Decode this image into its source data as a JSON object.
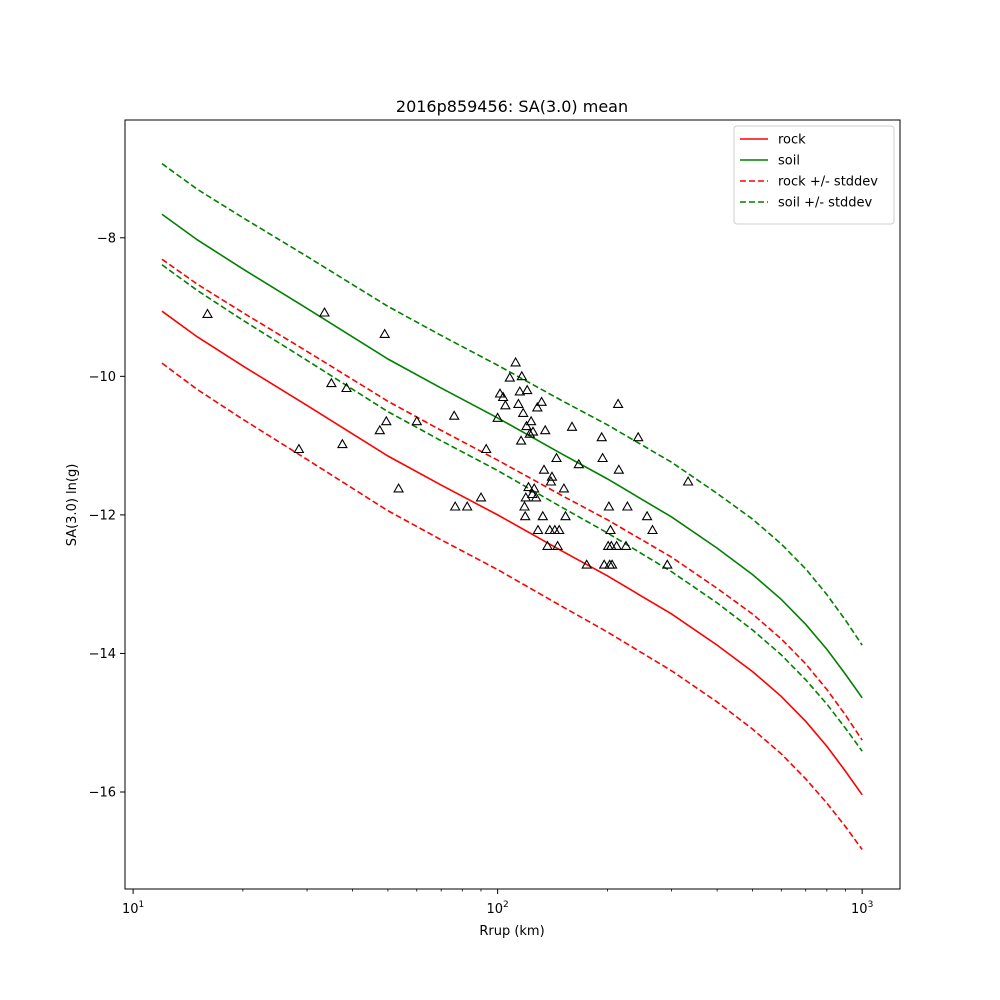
{
  "chart_data": {
    "type": "line",
    "title": "2016p859456: SA(3.0) mean",
    "xlabel": "Rrup (km)",
    "ylabel": "SA(3.0) ln(g)",
    "xscale": "log",
    "xlim": [
      9.5,
      1270
    ],
    "ylim": [
      -17.4,
      -6.3
    ],
    "x_ticks": [
      {
        "value": 10,
        "base": "10",
        "exp": "1"
      },
      {
        "value": 100,
        "base": "10",
        "exp": "2"
      },
      {
        "value": 1000,
        "base": "10",
        "exp": "3"
      }
    ],
    "y_ticks": [
      {
        "value": -8,
        "label": "−8"
      },
      {
        "value": -10,
        "label": "−10"
      },
      {
        "value": -12,
        "label": "−12"
      },
      {
        "value": -14,
        "label": "−14"
      },
      {
        "value": -16,
        "label": "−16"
      }
    ],
    "grid": false,
    "legend_position": "top-right",
    "series": [
      {
        "name": "rock",
        "color": "#ff0000",
        "style": "solid",
        "x": [
          12,
          15,
          20,
          30,
          50,
          70,
          100,
          150,
          200,
          300,
          400,
          500,
          600,
          700,
          800,
          900,
          1000
        ],
        "y": [
          -9.06,
          -9.43,
          -9.85,
          -10.42,
          -11.15,
          -11.57,
          -12.0,
          -12.52,
          -12.88,
          -13.43,
          -13.88,
          -14.26,
          -14.62,
          -14.98,
          -15.34,
          -15.7,
          -16.04
        ]
      },
      {
        "name": "soil",
        "color": "#008000",
        "style": "solid",
        "x": [
          12,
          15,
          20,
          30,
          50,
          70,
          100,
          150,
          200,
          300,
          400,
          500,
          600,
          700,
          800,
          900,
          1000
        ],
        "y": [
          -7.66,
          -8.03,
          -8.45,
          -9.02,
          -9.75,
          -10.17,
          -10.6,
          -11.12,
          -11.48,
          -12.03,
          -12.48,
          -12.86,
          -13.22,
          -13.58,
          -13.94,
          -14.3,
          -14.64
        ]
      },
      {
        "name": "rock +/- stddev",
        "color": "#ff0000",
        "style": "dashed",
        "x": [
          12,
          15,
          20,
          30,
          50,
          70,
          100,
          150,
          200,
          300,
          400,
          500,
          600,
          700,
          800,
          900,
          1000
        ],
        "y": [
          -8.31,
          -8.67,
          -9.08,
          -9.64,
          -10.36,
          -10.78,
          -11.21,
          -11.72,
          -12.07,
          -12.61,
          -13.06,
          -13.43,
          -13.79,
          -14.15,
          -14.52,
          -14.89,
          -15.25
        ]
      },
      {
        "name": "rock +/- stddev",
        "color": "#ff0000",
        "style": "dashed",
        "legend": false,
        "x": [
          12,
          15,
          20,
          30,
          50,
          70,
          100,
          150,
          200,
          300,
          400,
          500,
          600,
          700,
          800,
          900,
          1000
        ],
        "y": [
          -9.81,
          -10.19,
          -10.62,
          -11.2,
          -11.94,
          -12.36,
          -12.79,
          -13.32,
          -13.69,
          -14.25,
          -14.7,
          -15.09,
          -15.45,
          -15.81,
          -16.16,
          -16.5,
          -16.83
        ]
      },
      {
        "name": "soil +/- stddev",
        "color": "#008000",
        "style": "dashed",
        "x": [
          12,
          15,
          20,
          30,
          50,
          70,
          100,
          150,
          200,
          300,
          400,
          500,
          600,
          700,
          800,
          900,
          1000
        ],
        "y": [
          -6.93,
          -7.3,
          -7.71,
          -8.27,
          -8.99,
          -9.41,
          -9.84,
          -10.35,
          -10.7,
          -11.24,
          -11.69,
          -12.06,
          -12.42,
          -12.78,
          -13.15,
          -13.52,
          -13.88
        ]
      },
      {
        "name": "soil +/- stddev",
        "color": "#008000",
        "style": "dashed",
        "legend": false,
        "x": [
          12,
          15,
          20,
          30,
          50,
          70,
          100,
          150,
          200,
          300,
          400,
          500,
          600,
          700,
          800,
          900,
          1000
        ],
        "y": [
          -8.39,
          -8.76,
          -9.19,
          -9.77,
          -10.51,
          -10.93,
          -11.36,
          -11.89,
          -12.26,
          -12.82,
          -13.27,
          -13.66,
          -14.02,
          -14.38,
          -14.73,
          -15.08,
          -15.41
        ]
      }
    ],
    "observations": {
      "marker": "triangle-open",
      "color": "#000000",
      "points": [
        [
          16,
          -9.1
        ],
        [
          28.5,
          -11.05
        ],
        [
          33.5,
          -9.08
        ],
        [
          35,
          -10.1
        ],
        [
          37.5,
          -10.98
        ],
        [
          38.5,
          -10.17
        ],
        [
          47.5,
          -10.78
        ],
        [
          49,
          -9.39
        ],
        [
          49.5,
          -10.65
        ],
        [
          53.5,
          -11.62
        ],
        [
          60,
          -10.65
        ],
        [
          76,
          -10.57
        ],
        [
          76.5,
          -11.88
        ],
        [
          82.5,
          -11.88
        ],
        [
          90,
          -11.75
        ],
        [
          93,
          -11.05
        ],
        [
          100,
          -10.6
        ],
        [
          101.5,
          -10.25
        ],
        [
          103.5,
          -10.3
        ],
        [
          105,
          -10.42
        ],
        [
          108,
          -10.02
        ],
        [
          112,
          -9.8
        ],
        [
          114,
          -10.4
        ],
        [
          115,
          -10.22
        ],
        [
          116,
          -10.93
        ],
        [
          116.5,
          -10.0
        ],
        [
          117.5,
          -10.53
        ],
        [
          118.5,
          -11.88
        ],
        [
          119,
          -12.02
        ],
        [
          119.5,
          -11.75
        ],
        [
          120,
          -10.72
        ],
        [
          120.5,
          -10.2
        ],
        [
          121.5,
          -11.6
        ],
        [
          122.5,
          -10.83
        ],
        [
          123.5,
          -10.65
        ],
        [
          124.5,
          -11.7
        ],
        [
          125,
          -10.8
        ],
        [
          126,
          -11.62
        ],
        [
          127.5,
          -11.75
        ],
        [
          128.5,
          -10.45
        ],
        [
          129,
          -12.22
        ],
        [
          132,
          -10.37
        ],
        [
          133,
          -12.02
        ],
        [
          134,
          -11.35
        ],
        [
          135,
          -10.78
        ],
        [
          137,
          -12.45
        ],
        [
          139,
          -12.22
        ],
        [
          140,
          -11.52
        ],
        [
          141,
          -11.45
        ],
        [
          143.5,
          -12.22
        ],
        [
          145,
          -11.18
        ],
        [
          146,
          -12.45
        ],
        [
          147.5,
          -12.22
        ],
        [
          152,
          -11.62
        ],
        [
          153.5,
          -12.02
        ],
        [
          160,
          -10.73
        ],
        [
          167,
          -11.27
        ],
        [
          175.5,
          -12.72
        ],
        [
          193,
          -10.88
        ],
        [
          194,
          -11.18
        ],
        [
          196,
          -12.72
        ],
        [
          201,
          -12.45
        ],
        [
          202,
          -11.88
        ],
        [
          203,
          -12.72
        ],
        [
          204,
          -12.22
        ],
        [
          205,
          -12.45
        ],
        [
          206,
          -12.72
        ],
        [
          212,
          -12.45
        ],
        [
          214,
          -10.4
        ],
        [
          215,
          -11.35
        ],
        [
          225,
          -12.45
        ],
        [
          227,
          -11.88
        ],
        [
          243,
          -10.88
        ],
        [
          257,
          -12.02
        ],
        [
          266,
          -12.22
        ],
        [
          292,
          -12.72
        ],
        [
          333,
          -11.52
        ]
      ]
    }
  }
}
